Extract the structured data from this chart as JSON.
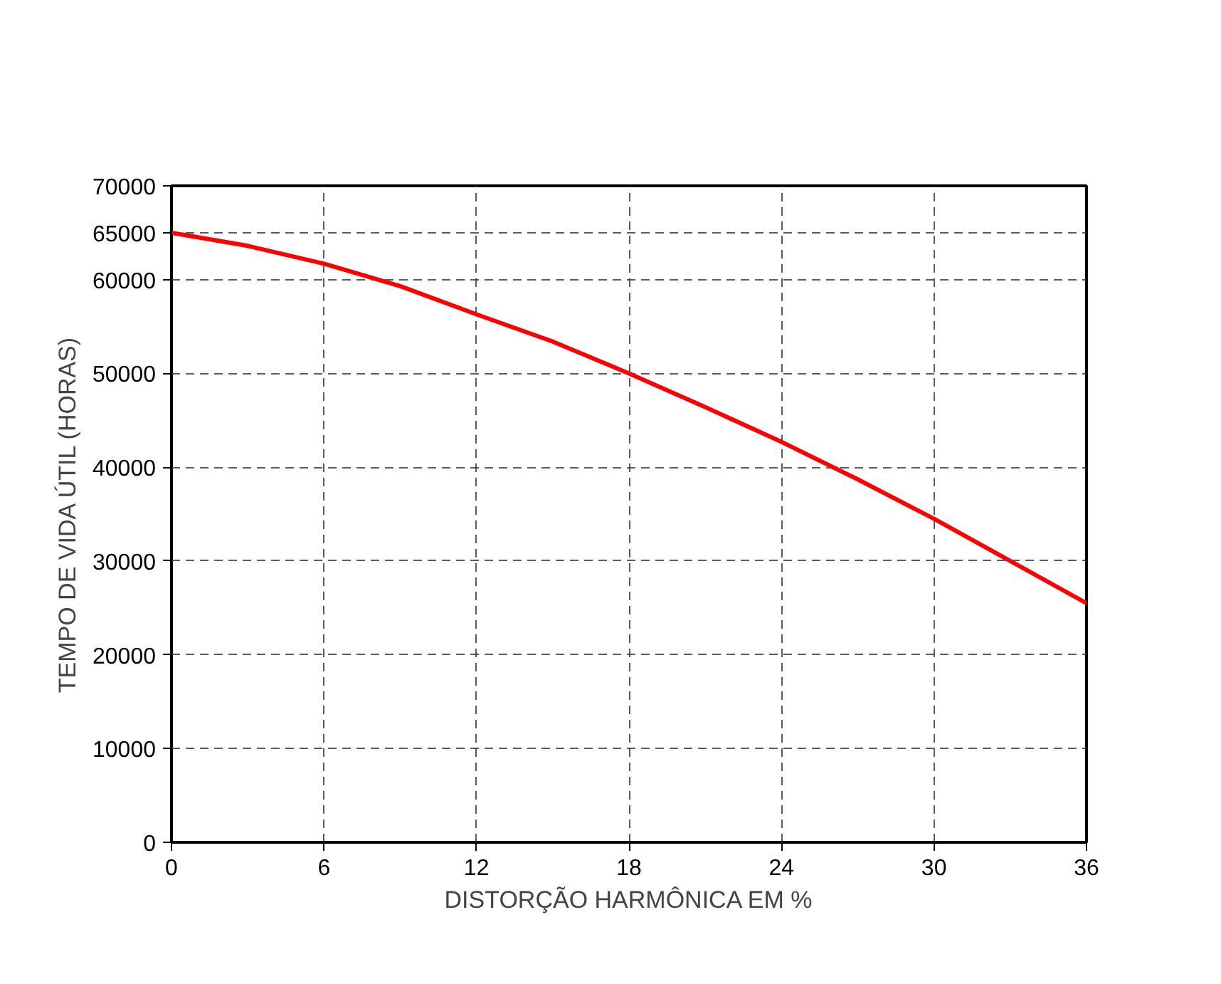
{
  "chart_data": {
    "type": "line",
    "xlabel": "DISTORÇÃO HARMÔNICA EM %",
    "ylabel": "TEMPO DE VIDA ÚTIL (HORAS)",
    "x": [
      0,
      3,
      6,
      9,
      12,
      15,
      18,
      21,
      24,
      27,
      30,
      33,
      36
    ],
    "series": [
      {
        "color": "#ff0000",
        "values": [
          65000,
          63600,
          61700,
          59300,
          56300,
          53400,
          50000,
          46400,
          42700,
          38700,
          34500,
          30000,
          25500
        ]
      }
    ],
    "xlim": [
      0,
      36
    ],
    "xticks": [
      0,
      6,
      12,
      18,
      24,
      30,
      36
    ],
    "ylim": [
      0,
      70000
    ],
    "yticks": [
      0,
      10000,
      20000,
      30000,
      40000,
      50000,
      60000,
      65000,
      70000
    ],
    "grid": true,
    "marker": "none",
    "line_style": "solid"
  }
}
